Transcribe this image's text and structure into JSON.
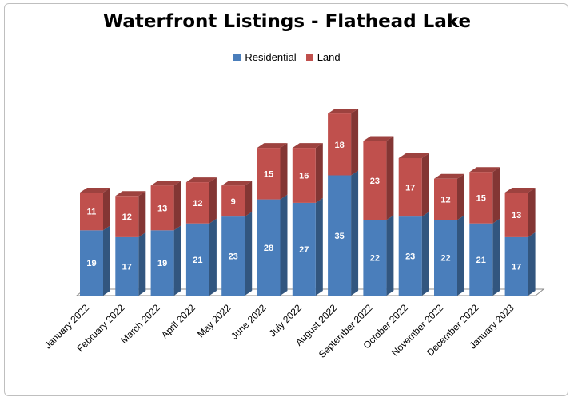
{
  "chart_data": {
    "type": "bar",
    "stacked": true,
    "title": "Waterfront Listings - Flathead Lake",
    "xlabel": "",
    "ylabel": "",
    "legend_position": "top",
    "grid": false,
    "ylim": [
      0,
      55
    ],
    "categories": [
      "January 2022",
      "February 2022",
      "March 2022",
      "April 2022",
      "May 2022",
      "June 2022",
      "July 2022",
      "August 2022",
      "September 2022",
      "October 2022",
      "November 2022",
      "December 2022",
      "January 2023"
    ],
    "series": [
      {
        "name": "Residential",
        "color": "#4a7ebb",
        "values": [
          19,
          17,
          19,
          21,
          23,
          28,
          27,
          35,
          22,
          23,
          22,
          21,
          17
        ]
      },
      {
        "name": "Land",
        "color": "#c0504d",
        "values": [
          11,
          12,
          13,
          12,
          9,
          15,
          16,
          18,
          23,
          17,
          12,
          15,
          13
        ]
      }
    ]
  }
}
